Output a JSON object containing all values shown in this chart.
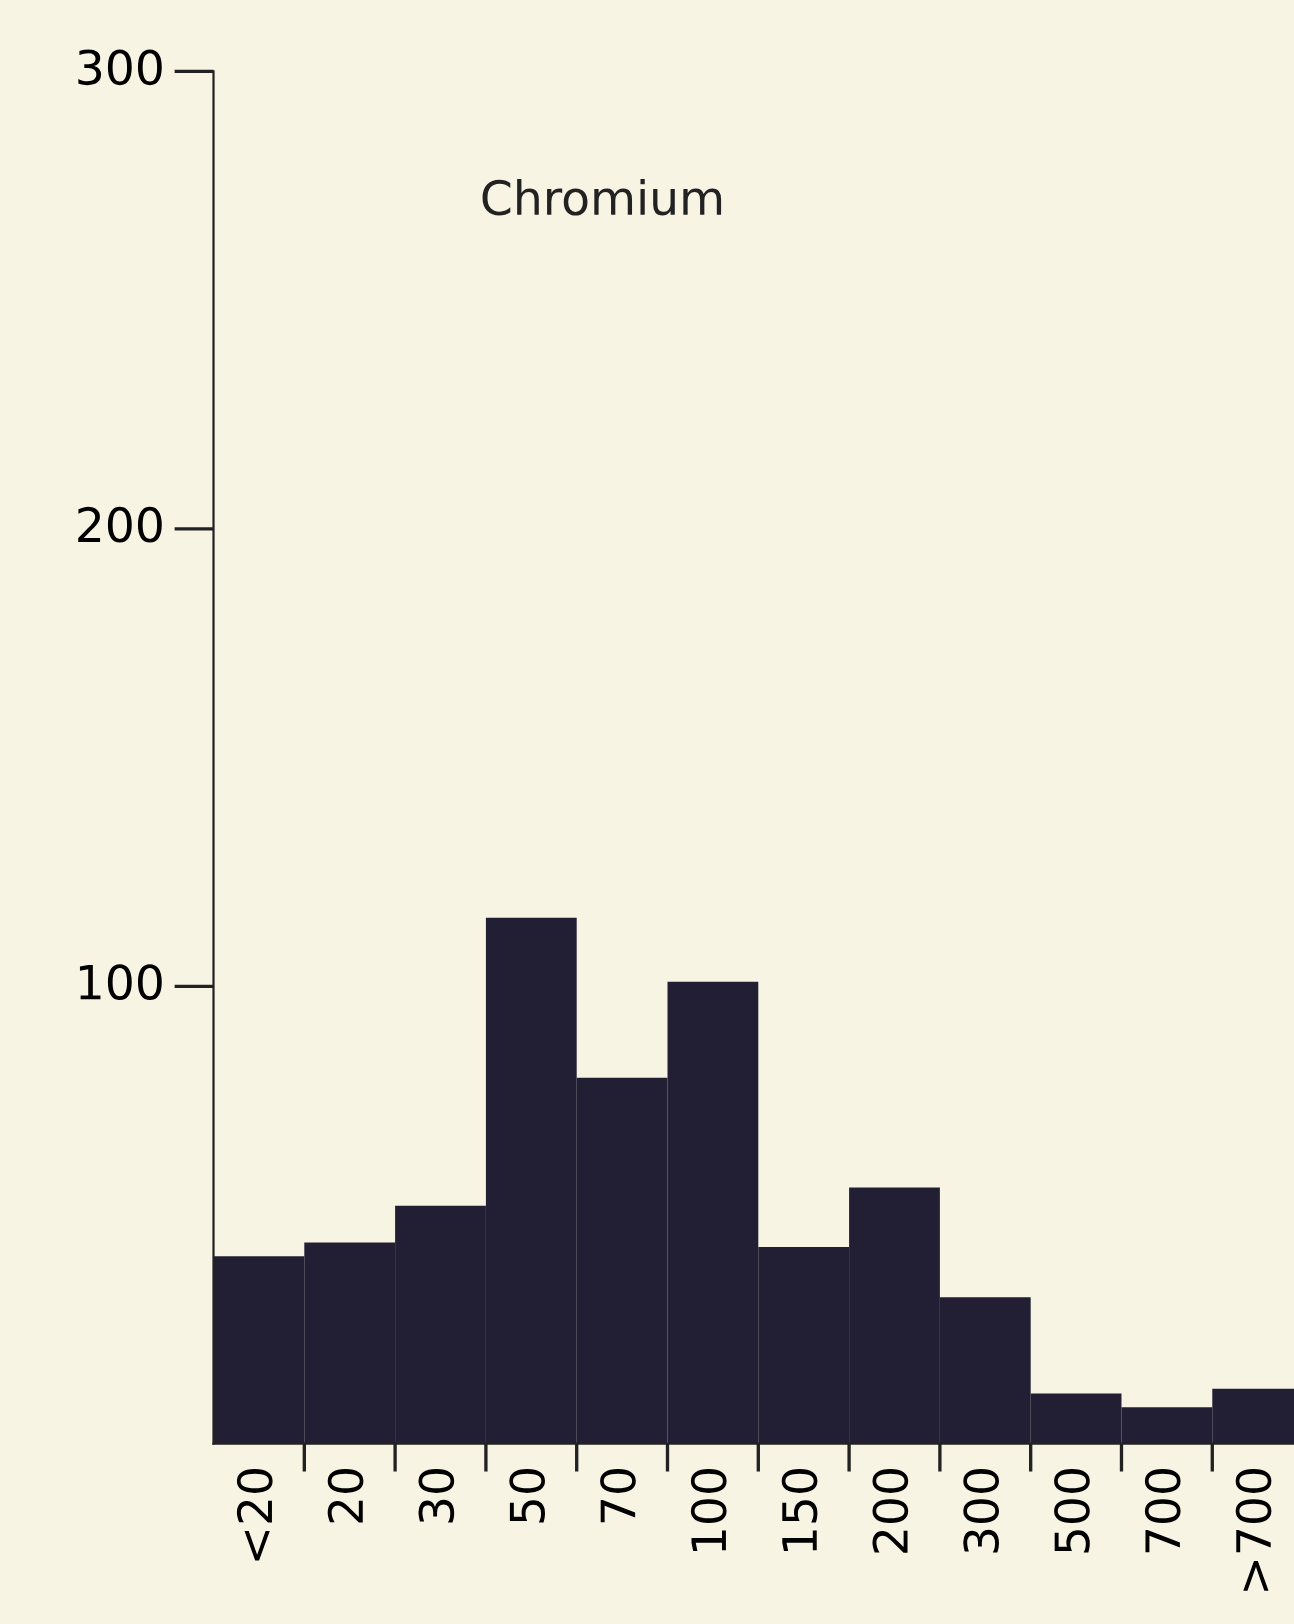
{
  "chart_data": {
    "type": "bar",
    "title": "Chromium",
    "categories": [
      "<20",
      "20",
      "30",
      "50",
      "70",
      "100",
      "150",
      "200",
      "300",
      "500",
      "700",
      ">700"
    ],
    "values": [
      41,
      44,
      52,
      115,
      80,
      101,
      43,
      56,
      32,
      11,
      8,
      12
    ],
    "color": "#221f35",
    "ylim": [
      0,
      300
    ],
    "yticks": [
      100,
      200,
      300
    ],
    "grid": false,
    "legend": false
  }
}
